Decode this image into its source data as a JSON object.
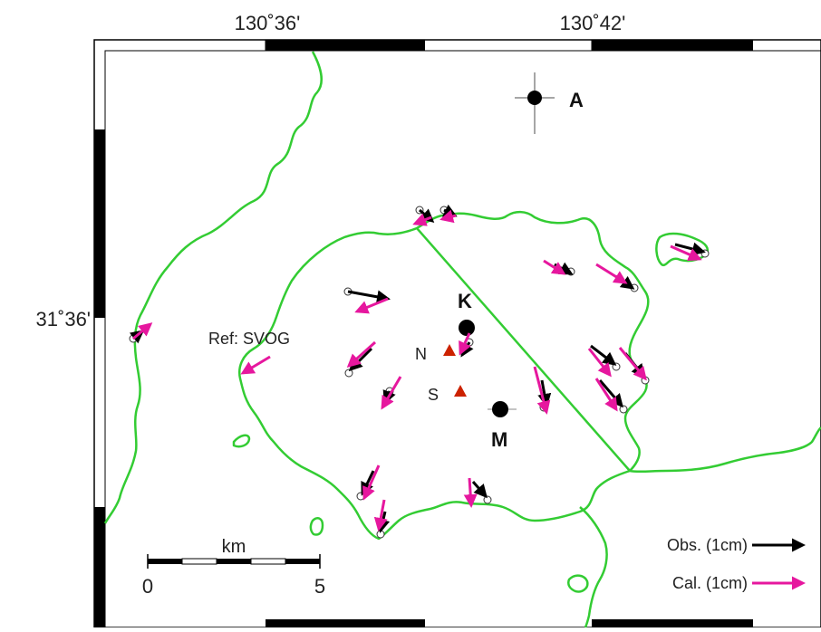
{
  "map": {
    "top_axis_labels": [
      "130˚36'",
      "130˚42'"
    ],
    "left_axis_labels": [
      "31˚36'"
    ],
    "reference_label": "Ref: SVOG",
    "points": {
      "A": "A",
      "K": "K",
      "M": "M",
      "N": "N",
      "S": "S"
    },
    "scale_bar": {
      "unit": "km",
      "min_label": "0",
      "max_label": "5"
    },
    "legend": [
      {
        "label": "Obs. (1cm)",
        "color": "#000000"
      },
      {
        "label": "Cal. (1cm)",
        "color": "#e6179e"
      }
    ],
    "colors": {
      "coastline": "#33cc33",
      "observed": "#000000",
      "calculated": "#e6179e",
      "vent": "#cc2200",
      "frame": "#000000"
    }
  }
}
